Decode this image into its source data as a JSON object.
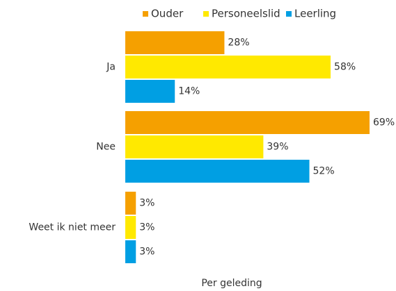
{
  "chart_data": {
    "type": "bar",
    "orientation": "horizontal",
    "categories": [
      "Ja",
      "Nee",
      "Weet ik niet meer"
    ],
    "series": [
      {
        "name": "Ouder",
        "color": "#f5a000",
        "values": [
          28,
          69,
          3
        ],
        "value_labels": [
          "28%",
          "69%",
          "3%"
        ]
      },
      {
        "name": "Personeelslid",
        "color": "#ffe900",
        "values": [
          58,
          39,
          3
        ],
        "value_labels": [
          "58%",
          "39%",
          "3%"
        ]
      },
      {
        "name": "Leerling",
        "color": "#009fe3",
        "values": [
          14,
          52,
          3
        ],
        "value_labels": [
          "14%",
          "52%",
          "3%"
        ]
      }
    ],
    "xlim": [
      0,
      69
    ],
    "x_label": "Per geleding",
    "legend": "top"
  }
}
